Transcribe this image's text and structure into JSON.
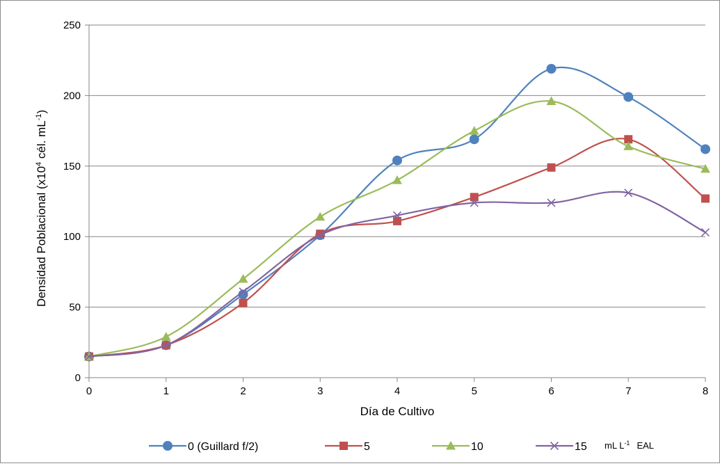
{
  "chart_data": {
    "type": "line",
    "xlabel": "Día de Cultivo",
    "ylabel": "Densidad Poblacional (x10",
    "ylabel_sup": "4",
    "ylabel_mid": " cél. mL",
    "ylabel_sup2": "-1",
    "ylabel_end": ")",
    "x": [
      0,
      1,
      2,
      3,
      4,
      5,
      6,
      7,
      8
    ],
    "xlim": [
      0,
      8
    ],
    "ylim": [
      0,
      250
    ],
    "yticks": [
      0,
      50,
      100,
      150,
      200,
      250
    ],
    "grid": "horizontal",
    "legend_position": "bottom",
    "legend_suffix": "mL L",
    "legend_suffix_sup": "-1",
    "legend_suffix_end": "EAL",
    "series": [
      {
        "name": "0 (Guillard f/2)",
        "color": "#4F81BD",
        "marker": "circle",
        "values": [
          15,
          23,
          59,
          101,
          154,
          169,
          219,
          199,
          162
        ]
      },
      {
        "name": "5",
        "color": "#C0504D",
        "marker": "square",
        "values": [
          15,
          23,
          53,
          102,
          111,
          128,
          149,
          169,
          127
        ]
      },
      {
        "name": "10",
        "color": "#9BBB59",
        "marker": "triangle",
        "values": [
          15,
          29,
          70,
          114,
          140,
          175,
          196,
          164,
          148
        ]
      },
      {
        "name": "15",
        "color": "#8064A2",
        "marker": "x",
        "values": [
          15,
          23,
          61,
          101,
          115,
          124,
          124,
          131,
          103
        ]
      }
    ]
  }
}
